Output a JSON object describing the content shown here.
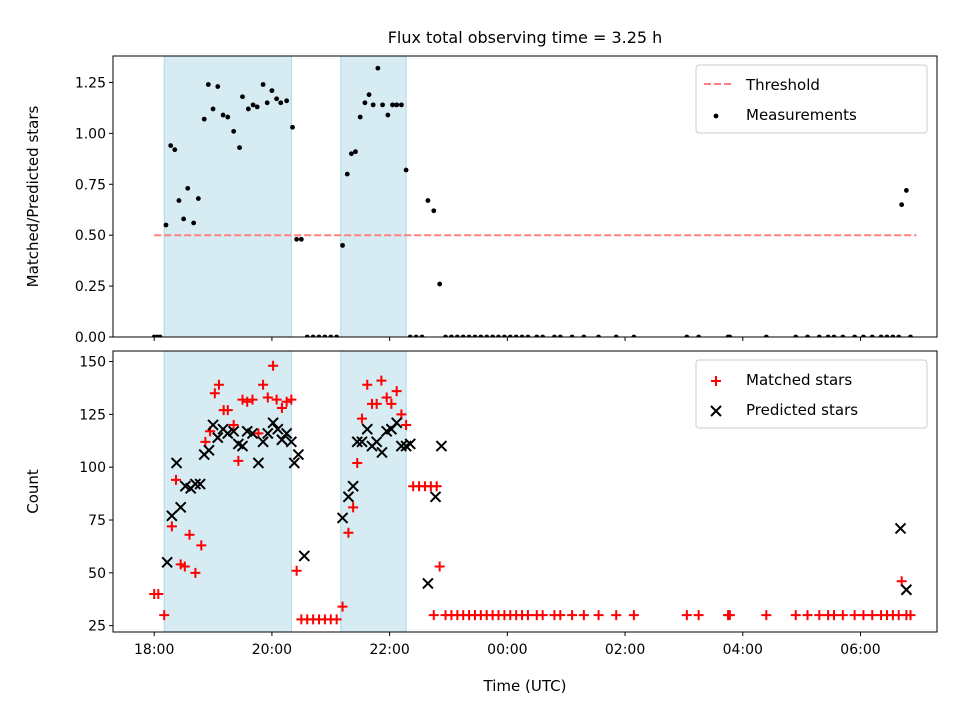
{
  "title": "Flux total observing time = 3.25 h",
  "chart_data": [
    {
      "type": "scatter",
      "panel": "top",
      "ylabel": "Matched/Predicted stars",
      "xlabel": "",
      "x_unit": "hours since 18:00 UTC",
      "xlim": [
        -0.7,
        13.3
      ],
      "ylim": [
        0,
        1.38
      ],
      "yticks": [
        0.0,
        0.25,
        0.5,
        0.75,
        1.0,
        1.25
      ],
      "ytick_labels": [
        "0.00",
        "0.25",
        "0.50",
        "0.75",
        "1.00",
        "1.25"
      ],
      "shaded_intervals": [
        [
          0.17,
          2.33
        ],
        [
          3.17,
          4.28
        ]
      ],
      "shade_color": "#add8e6",
      "legend": {
        "position": "top-right",
        "entries": [
          "Threshold",
          "Measurements"
        ]
      },
      "threshold": {
        "name": "Threshold",
        "y": 0.5,
        "x_range": [
          0,
          12.95
        ],
        "color": "#ff7f7f",
        "style": "dashed"
      },
      "series": [
        {
          "name": "Measurements",
          "marker": "dot",
          "color": "#000000",
          "points": [
            [
              0,
              0
            ],
            [
              0.05,
              0
            ],
            [
              0.1,
              0
            ],
            [
              0.2,
              0.55
            ],
            [
              0.28,
              0.94
            ],
            [
              0.35,
              0.92
            ],
            [
              0.42,
              0.67
            ],
            [
              0.5,
              0.58
            ],
            [
              0.57,
              0.73
            ],
            [
              0.67,
              0.56
            ],
            [
              0.75,
              0.68
            ],
            [
              0.85,
              1.07
            ],
            [
              0.92,
              1.24
            ],
            [
              1.0,
              1.12
            ],
            [
              1.08,
              1.23
            ],
            [
              1.17,
              1.09
            ],
            [
              1.25,
              1.08
            ],
            [
              1.35,
              1.01
            ],
            [
              1.45,
              0.93
            ],
            [
              1.5,
              1.18
            ],
            [
              1.6,
              1.12
            ],
            [
              1.68,
              1.14
            ],
            [
              1.75,
              1.13
            ],
            [
              1.85,
              1.24
            ],
            [
              1.92,
              1.15
            ],
            [
              2.0,
              1.21
            ],
            [
              2.08,
              1.17
            ],
            [
              2.15,
              1.15
            ],
            [
              2.25,
              1.16
            ],
            [
              2.35,
              1.03
            ],
            [
              2.42,
              0.48
            ],
            [
              2.5,
              0.48
            ],
            [
              2.6,
              0
            ],
            [
              2.7,
              0
            ],
            [
              2.8,
              0
            ],
            [
              2.9,
              0
            ],
            [
              3.0,
              0
            ],
            [
              3.1,
              0
            ],
            [
              3.2,
              0.45
            ],
            [
              3.28,
              0.8
            ],
            [
              3.35,
              0.9
            ],
            [
              3.42,
              0.91
            ],
            [
              3.5,
              1.08
            ],
            [
              3.58,
              1.15
            ],
            [
              3.65,
              1.19
            ],
            [
              3.72,
              1.14
            ],
            [
              3.8,
              1.32
            ],
            [
              3.88,
              1.14
            ],
            [
              3.97,
              1.09
            ],
            [
              4.05,
              1.14
            ],
            [
              4.12,
              1.14
            ],
            [
              4.2,
              1.14
            ],
            [
              4.28,
              0.82
            ],
            [
              4.35,
              0
            ],
            [
              4.45,
              0
            ],
            [
              4.55,
              0
            ],
            [
              4.65,
              0.67
            ],
            [
              4.75,
              0.62
            ],
            [
              4.85,
              0.26
            ],
            [
              4.95,
              0
            ],
            [
              5.05,
              0
            ],
            [
              5.15,
              0
            ],
            [
              5.25,
              0
            ],
            [
              5.35,
              0
            ],
            [
              5.45,
              0
            ],
            [
              5.55,
              0
            ],
            [
              5.65,
              0
            ],
            [
              5.75,
              0
            ],
            [
              5.85,
              0
            ],
            [
              5.95,
              0
            ],
            [
              6.05,
              0
            ],
            [
              6.15,
              0
            ],
            [
              6.25,
              0
            ],
            [
              6.35,
              0
            ],
            [
              6.5,
              0
            ],
            [
              6.6,
              0
            ],
            [
              6.8,
              0
            ],
            [
              6.9,
              0
            ],
            [
              7.1,
              0
            ],
            [
              7.3,
              0
            ],
            [
              7.55,
              0
            ],
            [
              7.85,
              0
            ],
            [
              8.15,
              0
            ],
            [
              9.05,
              0
            ],
            [
              9.25,
              0
            ],
            [
              9.75,
              0
            ],
            [
              9.78,
              0
            ],
            [
              10.4,
              0
            ],
            [
              10.9,
              0
            ],
            [
              11.1,
              0
            ],
            [
              11.3,
              0
            ],
            [
              11.45,
              0
            ],
            [
              11.55,
              0
            ],
            [
              11.7,
              0
            ],
            [
              11.9,
              0
            ],
            [
              12.05,
              0
            ],
            [
              12.2,
              0
            ],
            [
              12.35,
              0
            ],
            [
              12.45,
              0
            ],
            [
              12.55,
              0
            ],
            [
              12.65,
              0
            ],
            [
              12.7,
              0.65
            ],
            [
              12.78,
              0.72
            ],
            [
              12.85,
              0
            ]
          ]
        }
      ]
    },
    {
      "type": "scatter",
      "panel": "bottom",
      "ylabel": "Count",
      "xlabel": "Time (UTC)",
      "x_unit": "hours since 18:00 UTC",
      "xlim": [
        -0.7,
        13.3
      ],
      "ylim": [
        22,
        155
      ],
      "yticks": [
        25,
        50,
        75,
        100,
        125,
        150
      ],
      "ytick_labels": [
        "25",
        "50",
        "75",
        "100",
        "125",
        "150"
      ],
      "xticks": [
        0,
        2,
        4,
        6,
        8,
        10,
        12
      ],
      "xtick_labels": [
        "18:00",
        "20:00",
        "22:00",
        "00:00",
        "02:00",
        "04:00",
        "06:00"
      ],
      "shaded_intervals": [
        [
          0.17,
          2.33
        ],
        [
          3.17,
          4.28
        ]
      ],
      "shade_color": "#add8e6",
      "legend": {
        "position": "top-right",
        "entries": [
          "Matched stars",
          "Predicted stars"
        ]
      },
      "series": [
        {
          "name": "Matched stars",
          "marker": "plus",
          "color": "#ff0000",
          "points": [
            [
              0,
              40
            ],
            [
              0.07,
              40
            ],
            [
              0.17,
              30
            ],
            [
              0.3,
              72
            ],
            [
              0.37,
              94
            ],
            [
              0.45,
              54
            ],
            [
              0.52,
              53
            ],
            [
              0.6,
              68
            ],
            [
              0.7,
              50
            ],
            [
              0.8,
              63
            ],
            [
              0.87,
              112
            ],
            [
              0.95,
              117
            ],
            [
              1.03,
              135
            ],
            [
              1.1,
              139
            ],
            [
              1.18,
              127
            ],
            [
              1.25,
              127
            ],
            [
              1.35,
              120
            ],
            [
              1.43,
              103
            ],
            [
              1.5,
              132
            ],
            [
              1.58,
              131
            ],
            [
              1.67,
              132
            ],
            [
              1.77,
              116
            ],
            [
              1.85,
              139
            ],
            [
              1.93,
              133
            ],
            [
              2.02,
              148
            ],
            [
              2.08,
              132
            ],
            [
              2.17,
              128
            ],
            [
              2.25,
              131
            ],
            [
              2.33,
              132
            ],
            [
              2.42,
              51
            ],
            [
              2.5,
              28
            ],
            [
              2.6,
              28
            ],
            [
              2.7,
              28
            ],
            [
              2.8,
              28
            ],
            [
              2.9,
              28
            ],
            [
              3.0,
              28
            ],
            [
              3.1,
              28
            ],
            [
              3.2,
              34
            ],
            [
              3.3,
              69
            ],
            [
              3.38,
              81
            ],
            [
              3.45,
              102
            ],
            [
              3.53,
              123
            ],
            [
              3.62,
              139
            ],
            [
              3.7,
              130
            ],
            [
              3.78,
              130
            ],
            [
              3.86,
              141
            ],
            [
              3.95,
              133
            ],
            [
              4.03,
              130
            ],
            [
              4.12,
              136
            ],
            [
              4.2,
              125
            ],
            [
              4.28,
              120
            ],
            [
              4.4,
              91
            ],
            [
              4.5,
              91
            ],
            [
              4.6,
              91
            ],
            [
              4.7,
              91
            ],
            [
              4.8,
              91
            ],
            [
              4.85,
              53
            ],
            [
              4.75,
              30
            ],
            [
              4.95,
              30
            ],
            [
              5.05,
              30
            ],
            [
              5.15,
              30
            ],
            [
              5.25,
              30
            ],
            [
              5.35,
              30
            ],
            [
              5.45,
              30
            ],
            [
              5.55,
              30
            ],
            [
              5.65,
              30
            ],
            [
              5.75,
              30
            ],
            [
              5.85,
              30
            ],
            [
              5.95,
              30
            ],
            [
              6.05,
              30
            ],
            [
              6.15,
              30
            ],
            [
              6.25,
              30
            ],
            [
              6.35,
              30
            ],
            [
              6.5,
              30
            ],
            [
              6.6,
              30
            ],
            [
              6.8,
              30
            ],
            [
              6.9,
              30
            ],
            [
              7.1,
              30
            ],
            [
              7.3,
              30
            ],
            [
              7.55,
              30
            ],
            [
              7.85,
              30
            ],
            [
              8.15,
              30
            ],
            [
              9.05,
              30
            ],
            [
              9.25,
              30
            ],
            [
              9.75,
              30
            ],
            [
              9.78,
              30
            ],
            [
              10.4,
              30
            ],
            [
              10.9,
              30
            ],
            [
              11.1,
              30
            ],
            [
              11.3,
              30
            ],
            [
              11.45,
              30
            ],
            [
              11.55,
              30
            ],
            [
              11.7,
              30
            ],
            [
              11.9,
              30
            ],
            [
              12.05,
              30
            ],
            [
              12.2,
              30
            ],
            [
              12.35,
              30
            ],
            [
              12.45,
              30
            ],
            [
              12.55,
              30
            ],
            [
              12.65,
              30
            ],
            [
              12.7,
              46
            ],
            [
              12.78,
              30
            ],
            [
              12.85,
              30
            ]
          ]
        },
        {
          "name": "Predicted stars",
          "marker": "x",
          "color": "#000000",
          "points": [
            [
              0.22,
              55
            ],
            [
              0.3,
              77
            ],
            [
              0.38,
              102
            ],
            [
              0.45,
              81
            ],
            [
              0.53,
              91
            ],
            [
              0.62,
              90
            ],
            [
              0.7,
              92
            ],
            [
              0.78,
              92
            ],
            [
              0.85,
              106
            ],
            [
              0.93,
              108
            ],
            [
              1.0,
              120
            ],
            [
              1.08,
              114
            ],
            [
              1.17,
              118
            ],
            [
              1.25,
              116
            ],
            [
              1.35,
              117
            ],
            [
              1.43,
              111
            ],
            [
              1.5,
              110
            ],
            [
              1.58,
              117
            ],
            [
              1.67,
              116
            ],
            [
              1.77,
              102
            ],
            [
              1.85,
              112
            ],
            [
              1.93,
              116
            ],
            [
              2.02,
              121
            ],
            [
              2.1,
              118
            ],
            [
              2.17,
              113
            ],
            [
              2.25,
              116
            ],
            [
              2.33,
              112
            ],
            [
              2.38,
              102
            ],
            [
              2.45,
              106
            ],
            [
              2.55,
              58
            ],
            [
              3.2,
              76
            ],
            [
              3.3,
              86
            ],
            [
              3.38,
              91
            ],
            [
              3.45,
              112
            ],
            [
              3.53,
              112
            ],
            [
              3.62,
              118
            ],
            [
              3.7,
              110
            ],
            [
              3.78,
              112
            ],
            [
              3.87,
              107
            ],
            [
              3.95,
              117
            ],
            [
              4.03,
              118
            ],
            [
              4.12,
              121
            ],
            [
              4.2,
              110
            ],
            [
              4.28,
              110
            ],
            [
              4.35,
              111
            ],
            [
              4.65,
              45
            ],
            [
              4.78,
              86
            ],
            [
              4.88,
              110
            ],
            [
              12.68,
              71
            ],
            [
              12.78,
              42
            ]
          ]
        }
      ]
    }
  ]
}
